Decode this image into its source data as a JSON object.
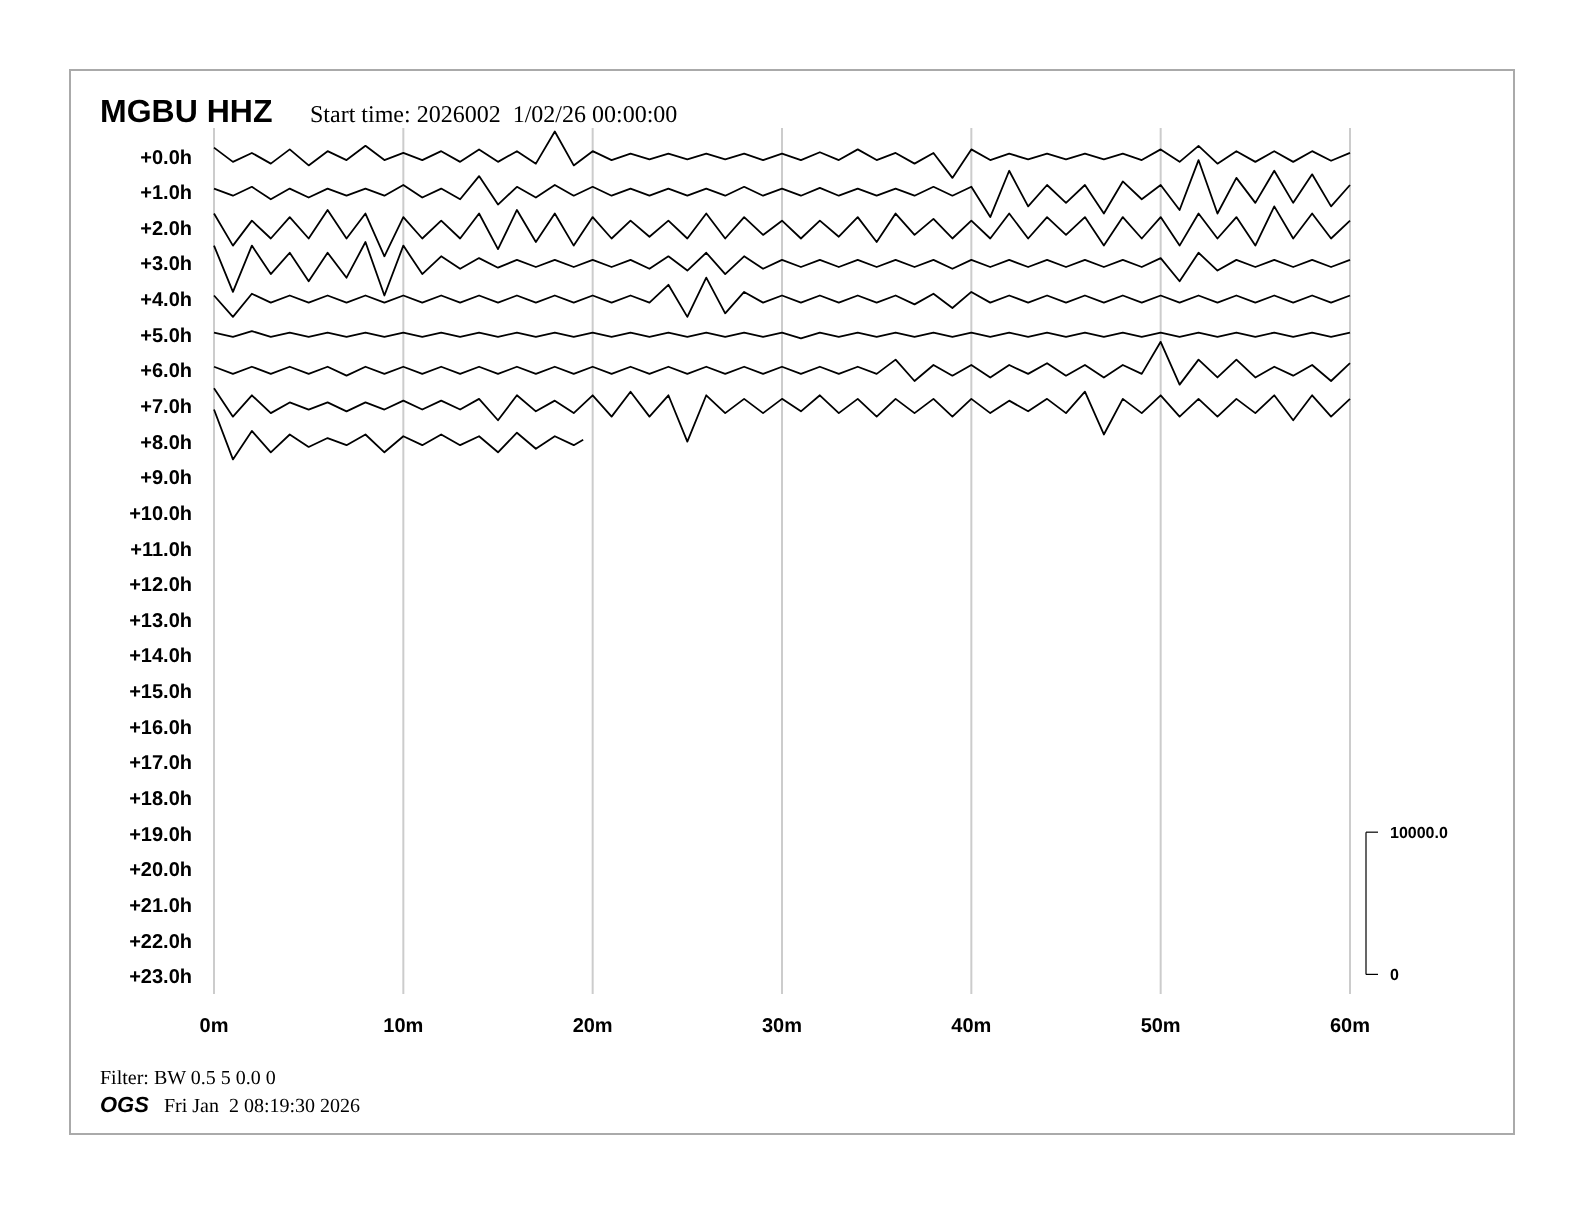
{
  "chart_data": {
    "type": "line",
    "title": "MGBU HHZ",
    "subtitle": "Start time: 2026002  1/02/26 00:00:00",
    "annotations": [
      "Filter: BW 0.5 5 0.0 0",
      "OGS",
      "Fri Jan  2 08:19:30 2026"
    ],
    "x": [
      0,
      1,
      2,
      3,
      4,
      5,
      6,
      7,
      8,
      9,
      10,
      11,
      12,
      13,
      14,
      15,
      16,
      17,
      18,
      19,
      20,
      21,
      22,
      23,
      24,
      25,
      26,
      27,
      28,
      29,
      30,
      31,
      32,
      33,
      34,
      35,
      36,
      37,
      38,
      39,
      40,
      41,
      42,
      43,
      44,
      45,
      46,
      47,
      48,
      49,
      50,
      51,
      52,
      53,
      54,
      55,
      56,
      57,
      58,
      59,
      60
    ],
    "xlim": [
      0,
      60
    ],
    "xticks": [
      {
        "value": 0,
        "label": "0m"
      },
      {
        "value": 10,
        "label": "10m"
      },
      {
        "value": 20,
        "label": "20m"
      },
      {
        "value": 30,
        "label": "30m"
      },
      {
        "value": 40,
        "label": "40m"
      },
      {
        "value": 50,
        "label": "50m"
      },
      {
        "value": 60,
        "label": "60m"
      }
    ],
    "ylim": [
      23.5,
      -0.8
    ],
    "yticks": [
      {
        "value": 0,
        "label": "+0.0h"
      },
      {
        "value": 1,
        "label": "+1.0h"
      },
      {
        "value": 2,
        "label": "+2.0h"
      },
      {
        "value": 3,
        "label": "+3.0h"
      },
      {
        "value": 4,
        "label": "+4.0h"
      },
      {
        "value": 5,
        "label": "+5.0h"
      },
      {
        "value": 6,
        "label": "+6.0h"
      },
      {
        "value": 7,
        "label": "+7.0h"
      },
      {
        "value": 8,
        "label": "+8.0h"
      },
      {
        "value": 9,
        "label": "+9.0h"
      },
      {
        "value": 10,
        "label": "+10.0h"
      },
      {
        "value": 11,
        "label": "+11.0h"
      },
      {
        "value": 12,
        "label": "+12.0h"
      },
      {
        "value": 13,
        "label": "+13.0h"
      },
      {
        "value": 14,
        "label": "+14.0h"
      },
      {
        "value": 15,
        "label": "+15.0h"
      },
      {
        "value": 16,
        "label": "+16.0h"
      },
      {
        "value": 17,
        "label": "+17.0h"
      },
      {
        "value": 18,
        "label": "+18.0h"
      },
      {
        "value": 19,
        "label": "+19.0h"
      },
      {
        "value": 20,
        "label": "+20.0h"
      },
      {
        "value": 21,
        "label": "+21.0h"
      },
      {
        "value": 22,
        "label": "+22.0h"
      },
      {
        "value": 23,
        "label": "+23.0h"
      }
    ],
    "y2lim": [
      -1380,
      59520
    ],
    "y2ticks": [
      0,
      {
        "value": 10000,
        "label": "10000.0"
      }
    ],
    "grid": "x",
    "series": [
      {
        "color": "#000000",
        "values": [
          -0.25,
          0.15,
          -0.1,
          0.2,
          -0.2,
          0.25,
          -0.15,
          0.1,
          -0.3,
          0.1,
          -0.1,
          0.1,
          -0.15,
          0.15,
          -0.2,
          0.15,
          -0.15,
          0.2,
          -0.7,
          0.25,
          -0.15,
          0.1,
          -0.08,
          0.08,
          -0.08,
          0.08,
          -0.08,
          0.08,
          -0.08,
          0.1,
          -0.08,
          0.1,
          -0.12,
          0.1,
          -0.2,
          0.1,
          -0.1,
          0.2,
          -0.1,
          0.6,
          -0.2,
          0.1,
          -0.08,
          0.08,
          -0.08,
          0.08,
          -0.08,
          0.08,
          -0.08,
          0.1,
          -0.2,
          0.15,
          -0.3,
          0.2,
          -0.15,
          0.15,
          -0.15,
          0.15,
          -0.15,
          0.12,
          -0.1
        ]
      },
      {
        "color": "#000000",
        "values": [
          0.9,
          1.1,
          0.85,
          1.2,
          0.9,
          1.15,
          0.9,
          1.1,
          0.9,
          1.1,
          0.8,
          1.15,
          0.9,
          1.2,
          0.55,
          1.35,
          0.85,
          1.15,
          0.8,
          1.1,
          0.85,
          1.1,
          0.9,
          1.1,
          0.9,
          1.1,
          0.9,
          1.1,
          0.85,
          1.1,
          0.9,
          1.1,
          0.88,
          1.1,
          0.9,
          1.1,
          0.9,
          1.1,
          0.85,
          1.1,
          0.85,
          1.7,
          0.4,
          1.4,
          0.8,
          1.3,
          0.8,
          1.6,
          0.7,
          1.2,
          0.8,
          1.5,
          0.1,
          1.6,
          0.6,
          1.3,
          0.4,
          1.3,
          0.5,
          1.4,
          0.8
        ]
      },
      {
        "color": "#000000",
        "values": [
          1.6,
          2.5,
          1.8,
          2.3,
          1.7,
          2.3,
          1.5,
          2.3,
          1.6,
          2.8,
          1.7,
          2.3,
          1.8,
          2.3,
          1.6,
          2.6,
          1.5,
          2.4,
          1.6,
          2.5,
          1.7,
          2.3,
          1.8,
          2.25,
          1.8,
          2.3,
          1.6,
          2.3,
          1.7,
          2.2,
          1.8,
          2.3,
          1.8,
          2.25,
          1.7,
          2.4,
          1.6,
          2.2,
          1.75,
          2.3,
          1.8,
          2.3,
          1.6,
          2.3,
          1.7,
          2.2,
          1.7,
          2.5,
          1.7,
          2.3,
          1.7,
          2.5,
          1.6,
          2.3,
          1.7,
          2.5,
          1.4,
          2.3,
          1.6,
          2.3,
          1.8
        ]
      },
      {
        "color": "#000000",
        "values": [
          2.5,
          3.8,
          2.5,
          3.3,
          2.7,
          3.5,
          2.7,
          3.4,
          2.4,
          3.9,
          2.5,
          3.3,
          2.8,
          3.15,
          2.85,
          3.12,
          2.9,
          3.1,
          2.9,
          3.1,
          2.9,
          3.1,
          2.9,
          3.15,
          2.8,
          3.2,
          2.7,
          3.3,
          2.8,
          3.15,
          2.9,
          3.1,
          2.9,
          3.1,
          2.9,
          3.1,
          2.9,
          3.1,
          2.9,
          3.15,
          2.9,
          3.1,
          2.9,
          3.1,
          2.9,
          3.1,
          2.9,
          3.1,
          2.9,
          3.1,
          2.85,
          3.5,
          2.7,
          3.2,
          2.9,
          3.1,
          2.9,
          3.1,
          2.9,
          3.1,
          2.9
        ]
      },
      {
        "color": "#000000",
        "values": [
          3.9,
          4.5,
          3.85,
          4.1,
          3.9,
          4.1,
          3.9,
          4.1,
          3.9,
          4.1,
          3.9,
          4.1,
          3.9,
          4.1,
          3.9,
          4.1,
          3.9,
          4.1,
          3.9,
          4.1,
          3.9,
          4.1,
          3.9,
          4.1,
          3.6,
          4.5,
          3.4,
          4.4,
          3.8,
          4.1,
          3.9,
          4.1,
          3.9,
          4.1,
          3.9,
          4.1,
          3.9,
          4.15,
          3.85,
          4.25,
          3.8,
          4.1,
          3.9,
          4.1,
          3.9,
          4.1,
          3.9,
          4.1,
          3.9,
          4.1,
          3.9,
          4.1,
          3.9,
          4.1,
          3.9,
          4.1,
          3.9,
          4.1,
          3.9,
          4.1,
          3.9
        ]
      },
      {
        "color": "#000000",
        "values": [
          4.94,
          5.06,
          4.9,
          5.06,
          4.94,
          5.06,
          4.94,
          5.06,
          4.94,
          5.06,
          4.94,
          5.06,
          4.94,
          5.06,
          4.94,
          5.06,
          4.94,
          5.06,
          4.94,
          5.06,
          4.94,
          5.06,
          4.94,
          5.06,
          4.94,
          5.06,
          4.94,
          5.06,
          4.94,
          5.06,
          4.94,
          5.1,
          4.94,
          5.06,
          4.94,
          5.06,
          4.94,
          5.06,
          4.94,
          5.06,
          4.94,
          5.06,
          4.94,
          5.06,
          4.94,
          5.06,
          4.94,
          5.06,
          4.94,
          5.06,
          4.94,
          5.06,
          4.94,
          5.06,
          4.94,
          5.06,
          4.94,
          5.06,
          4.94,
          5.06,
          4.94
        ]
      },
      {
        "color": "#000000",
        "values": [
          5.9,
          6.1,
          5.9,
          6.1,
          5.9,
          6.1,
          5.9,
          6.15,
          5.9,
          6.1,
          5.9,
          6.1,
          5.9,
          6.1,
          5.9,
          6.1,
          5.9,
          6.1,
          5.9,
          6.1,
          5.9,
          6.1,
          5.9,
          6.1,
          5.9,
          6.1,
          5.9,
          6.1,
          5.9,
          6.1,
          5.9,
          6.1,
          5.9,
          6.1,
          5.9,
          6.1,
          5.7,
          6.3,
          5.85,
          6.15,
          5.85,
          6.2,
          5.85,
          6.1,
          5.8,
          6.15,
          5.85,
          6.2,
          5.85,
          6.1,
          5.2,
          6.4,
          5.7,
          6.2,
          5.7,
          6.2,
          5.9,
          6.15,
          5.85,
          6.3,
          5.8
        ]
      },
      {
        "color": "#000000",
        "values": [
          6.5,
          7.3,
          6.7,
          7.2,
          6.9,
          7.1,
          6.9,
          7.15,
          6.9,
          7.1,
          6.85,
          7.1,
          6.85,
          7.1,
          6.8,
          7.4,
          6.7,
          7.15,
          6.85,
          7.2,
          6.7,
          7.3,
          6.6,
          7.3,
          6.7,
          8.0,
          6.7,
          7.2,
          6.8,
          7.2,
          6.8,
          7.15,
          6.7,
          7.2,
          6.8,
          7.3,
          6.8,
          7.2,
          6.8,
          7.3,
          6.8,
          7.2,
          6.85,
          7.15,
          6.8,
          7.2,
          6.6,
          7.8,
          6.8,
          7.2,
          6.7,
          7.3,
          6.8,
          7.3,
          6.8,
          7.2,
          6.7,
          7.4,
          6.7,
          7.3,
          6.8
        ]
      },
      {
        "color": "#000000",
        "x": [
          0,
          1,
          2,
          3,
          4,
          5,
          6,
          7,
          8,
          9,
          10,
          11,
          12,
          13,
          14,
          15,
          16,
          17,
          18,
          19,
          19.5
        ],
        "values": [
          7.1,
          8.5,
          7.7,
          8.3,
          7.8,
          8.15,
          7.9,
          8.1,
          7.8,
          8.3,
          7.85,
          8.1,
          7.8,
          8.1,
          7.85,
          8.3,
          7.75,
          8.2,
          7.85,
          8.1,
          7.95
        ]
      }
    ]
  }
}
